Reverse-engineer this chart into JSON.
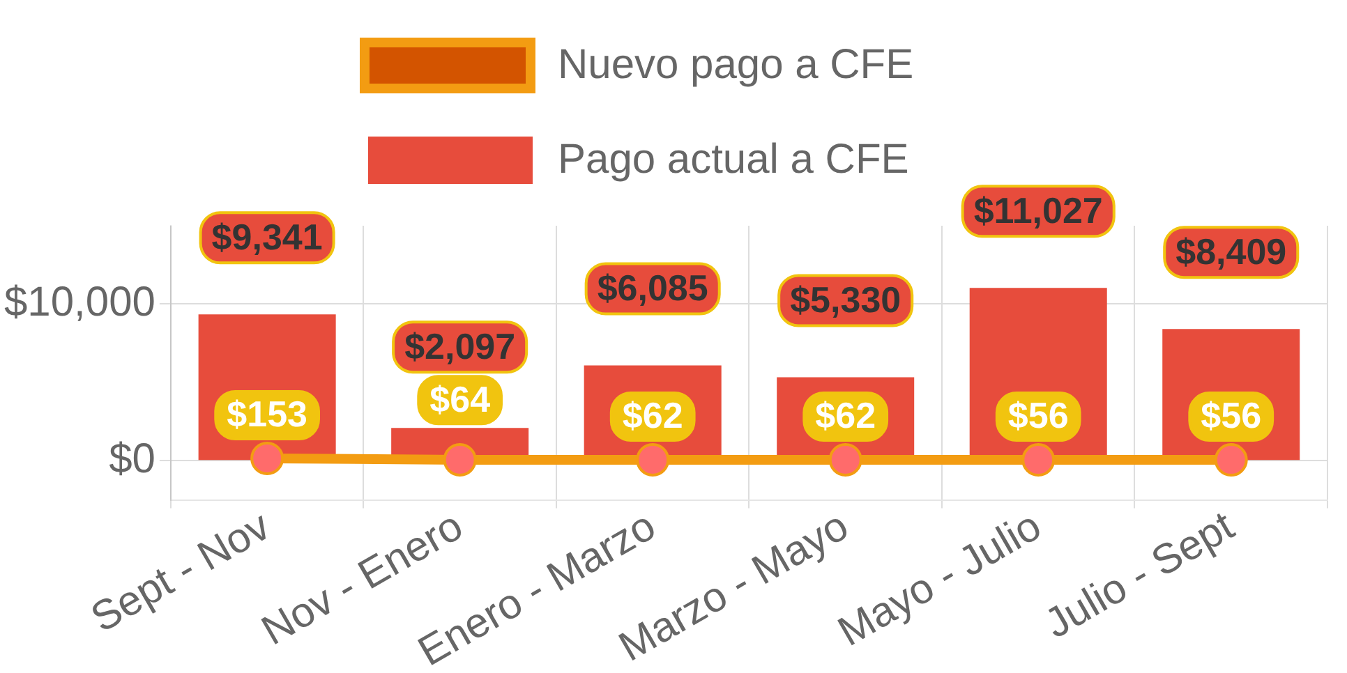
{
  "chart_data": {
    "type": "bar",
    "categories": [
      "Sept - Nov",
      "Nov - Enero",
      "Enero - Marzo",
      "Marzo - Mayo",
      "Mayo - Julio",
      "Julio - Sept"
    ],
    "series": [
      {
        "name": "Nuevo pago a CFE",
        "type": "line",
        "color": "#f39c12",
        "values": [
          153,
          64,
          62,
          62,
          56,
          56
        ],
        "value_labels": [
          "$153",
          "$64",
          "$62",
          "$62",
          "$56",
          "$56"
        ]
      },
      {
        "name": "Pago actual a CFE",
        "color": "#e74c3c",
        "values": [
          9341,
          2097,
          6085,
          5330,
          11027,
          8409
        ],
        "value_labels": [
          "$9,341",
          "$2,097",
          "$6,085",
          "$5,330",
          "$11,027",
          "$8,409"
        ]
      }
    ],
    "ylim": [
      -2500,
      15000
    ],
    "yticks": [
      {
        "value": 0,
        "label": "$0"
      },
      {
        "value": 10000,
        "label": "$10,000"
      }
    ],
    "grid": true,
    "legend": "top",
    "marker": "circle"
  }
}
